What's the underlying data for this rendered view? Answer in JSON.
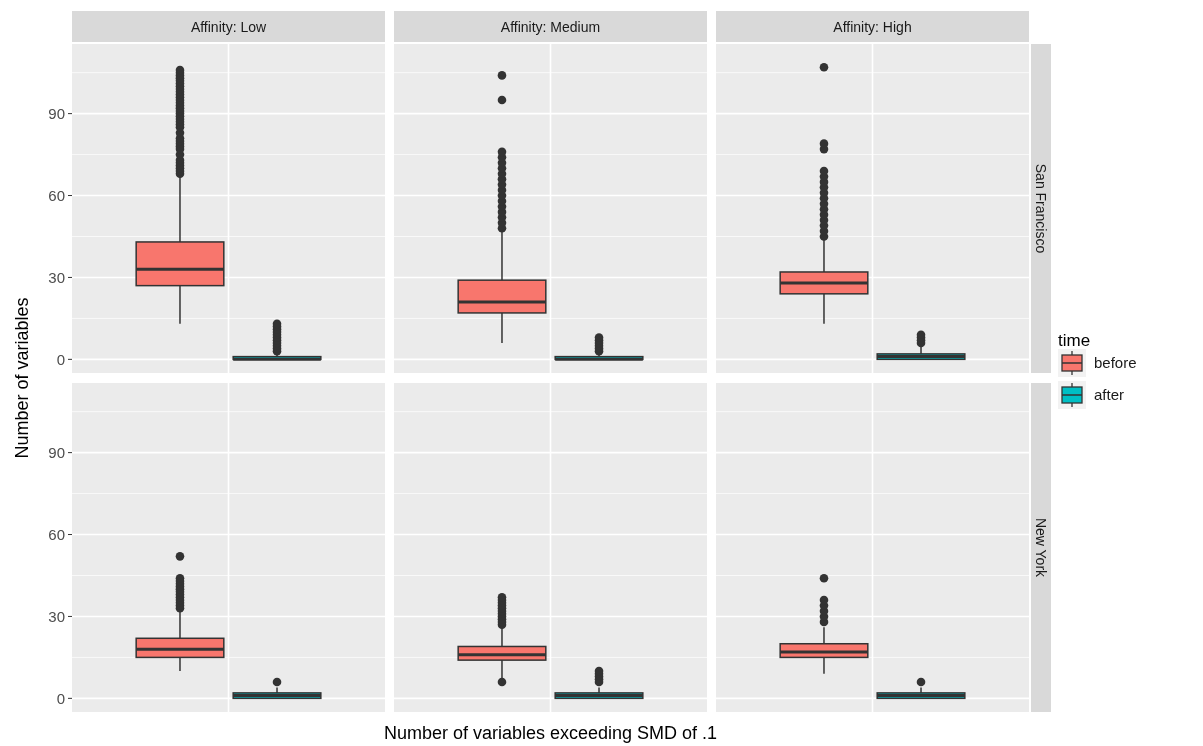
{
  "chart_data": [
    {
      "type": "box",
      "ylabel": "Number of variables",
      "annotations": [
        "San Francisco"
      ],
      "legend": "right",
      "legend_title": "time",
      "categories": [
        "Affinity: Low",
        "Affinity: Medium",
        "Affinity: High"
      ],
      "ylim": [
        -5,
        115.5
      ],
      "yticks": [
        0,
        30,
        60,
        90
      ],
      "grid": true,
      "series": [
        {
          "name": "before",
          "color": "#f8766d",
          "boxes": [
            {
              "low": 13,
              "q1": 27,
              "median": 33,
              "q3": 43,
              "high": 67,
              "outliers": [
                68,
                69,
                70,
                71,
                72,
                73,
                75,
                77,
                78,
                79,
                80,
                81,
                83,
                85,
                86,
                87,
                88,
                89,
                90,
                91,
                92,
                93,
                94,
                95,
                96,
                97,
                98,
                99,
                100,
                101,
                102,
                103,
                104,
                105,
                106
              ]
            },
            {
              "low": 6,
              "q1": 17,
              "median": 21,
              "q3": 29,
              "high": 47,
              "outliers": [
                48,
                50,
                52,
                54,
                56,
                58,
                60,
                62,
                64,
                66,
                68,
                70,
                72,
                74,
                76,
                95,
                104
              ]
            },
            {
              "low": 13,
              "q1": 24,
              "median": 28,
              "q3": 32,
              "high": 44,
              "outliers": [
                45,
                47,
                49,
                51,
                53,
                55,
                57,
                59,
                61,
                63,
                65,
                67,
                69,
                77,
                79,
                107
              ]
            }
          ]
        },
        {
          "name": "after",
          "color": "#00bfc4",
          "boxes": [
            {
              "low": 0,
              "q1": 0,
              "median": 0,
              "q3": 1,
              "high": 2,
              "outliers": [
                3,
                4,
                5,
                6,
                7,
                8,
                9,
                10,
                11,
                12,
                13
              ]
            },
            {
              "low": 0,
              "q1": 0,
              "median": 0,
              "q3": 1,
              "high": 2,
              "outliers": [
                3,
                4,
                5,
                6,
                7,
                8
              ]
            },
            {
              "low": 0,
              "q1": 0,
              "median": 1,
              "q3": 2,
              "high": 5,
              "outliers": [
                6,
                7,
                8,
                9
              ]
            }
          ]
        }
      ]
    },
    {
      "type": "box",
      "xlabel": "Number of variables exceeding SMD of .1",
      "annotations": [
        "New York"
      ],
      "categories": [
        null,
        null,
        null
      ],
      "ylim": [
        -5,
        115.5
      ],
      "yticks": [
        0,
        30,
        60,
        90
      ],
      "grid": true,
      "series": [
        {
          "color": "#f8766d",
          "boxes": [
            {
              "low": 10,
              "q1": 15,
              "median": 18,
              "q3": 22,
              "high": 32,
              "outliers": [
                33,
                34,
                35,
                36,
                37,
                38,
                39,
                40,
                41,
                42,
                43,
                44,
                52
              ]
            },
            {
              "low": 7,
              "q1": 14,
              "median": 16,
              "q3": 19,
              "high": 26,
              "outliers": [
                6,
                27,
                28,
                29,
                30,
                31,
                32,
                33,
                34,
                35,
                36,
                37
              ]
            },
            {
              "low": 9,
              "q1": 15,
              "median": 17,
              "q3": 20,
              "high": 26,
              "outliers": [
                28,
                30,
                32,
                34,
                36,
                44
              ]
            }
          ]
        },
        {
          "color": "#00bfc4",
          "boxes": [
            {
              "low": 0,
              "q1": 0,
              "median": 1,
              "q3": 2,
              "high": 4,
              "outliers": [
                6
              ]
            },
            {
              "low": 0,
              "q1": 0,
              "median": 1,
              "q3": 2,
              "high": 4,
              "outliers": [
                6,
                7,
                8,
                9,
                10
              ]
            },
            {
              "low": 0,
              "q1": 0,
              "median": 1,
              "q3": 2,
              "high": 4,
              "outliers": [
                6
              ]
            }
          ]
        }
      ]
    }
  ]
}
